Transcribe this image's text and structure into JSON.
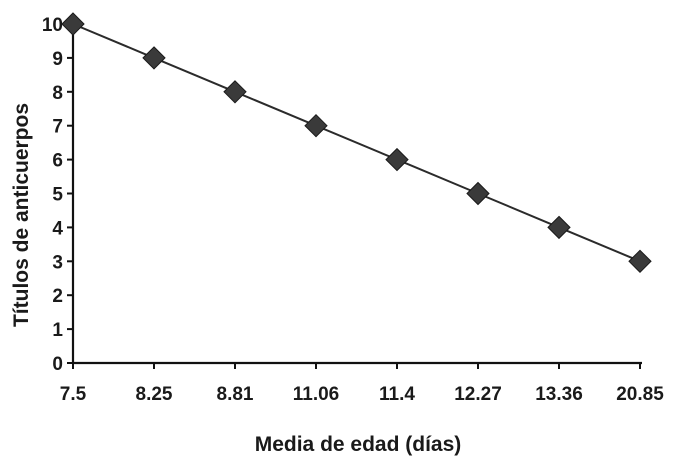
{
  "chart_data": {
    "type": "line",
    "title": "",
    "xlabel": "Media de edad (días)",
    "ylabel": "Títulos de anticuerpos",
    "categories": [
      "7.5",
      "8.25",
      "8.81",
      "11.06",
      "11.4",
      "12.27",
      "13.36",
      "20.85"
    ],
    "series": [
      {
        "values": [
          10,
          9,
          8,
          7,
          6,
          5,
          4,
          3
        ]
      }
    ],
    "ylim": [
      0,
      10
    ],
    "yticks": [
      0,
      1,
      2,
      3,
      4,
      5,
      6,
      7,
      8,
      9,
      10
    ],
    "grid": false,
    "legend": "none",
    "marker": "diamond",
    "colors": {
      "line": "#2b2b2b",
      "marker": "#3a3a3a",
      "axis": "#111111",
      "text": "#1a1a1a"
    }
  }
}
